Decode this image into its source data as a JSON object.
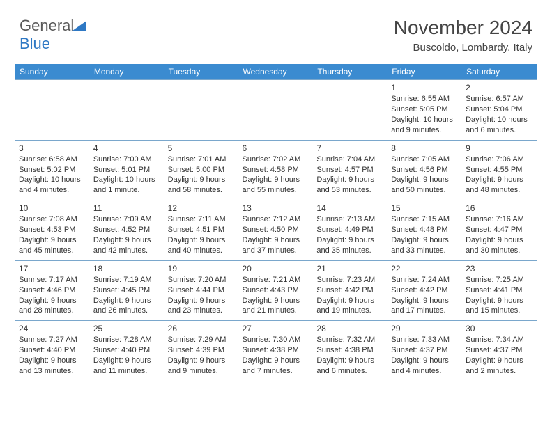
{
  "logo": {
    "text1": "General",
    "text2": "Blue",
    "triangle_color": "#2e78c4"
  },
  "header": {
    "month": "November 2024",
    "location": "Buscoldo, Lombardy, Italy"
  },
  "colors": {
    "header_bg": "#3b8bd0",
    "header_fg": "#ffffff",
    "rule": "#7aa7cc",
    "text": "#333333"
  },
  "daynames": [
    "Sunday",
    "Monday",
    "Tuesday",
    "Wednesday",
    "Thursday",
    "Friday",
    "Saturday"
  ],
  "weeks": [
    [
      null,
      null,
      null,
      null,
      null,
      {
        "d": "1",
        "sr": "Sunrise: 6:55 AM",
        "ss": "Sunset: 5:05 PM",
        "dl": "Daylight: 10 hours and 9 minutes."
      },
      {
        "d": "2",
        "sr": "Sunrise: 6:57 AM",
        "ss": "Sunset: 5:04 PM",
        "dl": "Daylight: 10 hours and 6 minutes."
      }
    ],
    [
      {
        "d": "3",
        "sr": "Sunrise: 6:58 AM",
        "ss": "Sunset: 5:02 PM",
        "dl": "Daylight: 10 hours and 4 minutes."
      },
      {
        "d": "4",
        "sr": "Sunrise: 7:00 AM",
        "ss": "Sunset: 5:01 PM",
        "dl": "Daylight: 10 hours and 1 minute."
      },
      {
        "d": "5",
        "sr": "Sunrise: 7:01 AM",
        "ss": "Sunset: 5:00 PM",
        "dl": "Daylight: 9 hours and 58 minutes."
      },
      {
        "d": "6",
        "sr": "Sunrise: 7:02 AM",
        "ss": "Sunset: 4:58 PM",
        "dl": "Daylight: 9 hours and 55 minutes."
      },
      {
        "d": "7",
        "sr": "Sunrise: 7:04 AM",
        "ss": "Sunset: 4:57 PM",
        "dl": "Daylight: 9 hours and 53 minutes."
      },
      {
        "d": "8",
        "sr": "Sunrise: 7:05 AM",
        "ss": "Sunset: 4:56 PM",
        "dl": "Daylight: 9 hours and 50 minutes."
      },
      {
        "d": "9",
        "sr": "Sunrise: 7:06 AM",
        "ss": "Sunset: 4:55 PM",
        "dl": "Daylight: 9 hours and 48 minutes."
      }
    ],
    [
      {
        "d": "10",
        "sr": "Sunrise: 7:08 AM",
        "ss": "Sunset: 4:53 PM",
        "dl": "Daylight: 9 hours and 45 minutes."
      },
      {
        "d": "11",
        "sr": "Sunrise: 7:09 AM",
        "ss": "Sunset: 4:52 PM",
        "dl": "Daylight: 9 hours and 42 minutes."
      },
      {
        "d": "12",
        "sr": "Sunrise: 7:11 AM",
        "ss": "Sunset: 4:51 PM",
        "dl": "Daylight: 9 hours and 40 minutes."
      },
      {
        "d": "13",
        "sr": "Sunrise: 7:12 AM",
        "ss": "Sunset: 4:50 PM",
        "dl": "Daylight: 9 hours and 37 minutes."
      },
      {
        "d": "14",
        "sr": "Sunrise: 7:13 AM",
        "ss": "Sunset: 4:49 PM",
        "dl": "Daylight: 9 hours and 35 minutes."
      },
      {
        "d": "15",
        "sr": "Sunrise: 7:15 AM",
        "ss": "Sunset: 4:48 PM",
        "dl": "Daylight: 9 hours and 33 minutes."
      },
      {
        "d": "16",
        "sr": "Sunrise: 7:16 AM",
        "ss": "Sunset: 4:47 PM",
        "dl": "Daylight: 9 hours and 30 minutes."
      }
    ],
    [
      {
        "d": "17",
        "sr": "Sunrise: 7:17 AM",
        "ss": "Sunset: 4:46 PM",
        "dl": "Daylight: 9 hours and 28 minutes."
      },
      {
        "d": "18",
        "sr": "Sunrise: 7:19 AM",
        "ss": "Sunset: 4:45 PM",
        "dl": "Daylight: 9 hours and 26 minutes."
      },
      {
        "d": "19",
        "sr": "Sunrise: 7:20 AM",
        "ss": "Sunset: 4:44 PM",
        "dl": "Daylight: 9 hours and 23 minutes."
      },
      {
        "d": "20",
        "sr": "Sunrise: 7:21 AM",
        "ss": "Sunset: 4:43 PM",
        "dl": "Daylight: 9 hours and 21 minutes."
      },
      {
        "d": "21",
        "sr": "Sunrise: 7:23 AM",
        "ss": "Sunset: 4:42 PM",
        "dl": "Daylight: 9 hours and 19 minutes."
      },
      {
        "d": "22",
        "sr": "Sunrise: 7:24 AM",
        "ss": "Sunset: 4:42 PM",
        "dl": "Daylight: 9 hours and 17 minutes."
      },
      {
        "d": "23",
        "sr": "Sunrise: 7:25 AM",
        "ss": "Sunset: 4:41 PM",
        "dl": "Daylight: 9 hours and 15 minutes."
      }
    ],
    [
      {
        "d": "24",
        "sr": "Sunrise: 7:27 AM",
        "ss": "Sunset: 4:40 PM",
        "dl": "Daylight: 9 hours and 13 minutes."
      },
      {
        "d": "25",
        "sr": "Sunrise: 7:28 AM",
        "ss": "Sunset: 4:40 PM",
        "dl": "Daylight: 9 hours and 11 minutes."
      },
      {
        "d": "26",
        "sr": "Sunrise: 7:29 AM",
        "ss": "Sunset: 4:39 PM",
        "dl": "Daylight: 9 hours and 9 minutes."
      },
      {
        "d": "27",
        "sr": "Sunrise: 7:30 AM",
        "ss": "Sunset: 4:38 PM",
        "dl": "Daylight: 9 hours and 7 minutes."
      },
      {
        "d": "28",
        "sr": "Sunrise: 7:32 AM",
        "ss": "Sunset: 4:38 PM",
        "dl": "Daylight: 9 hours and 6 minutes."
      },
      {
        "d": "29",
        "sr": "Sunrise: 7:33 AM",
        "ss": "Sunset: 4:37 PM",
        "dl": "Daylight: 9 hours and 4 minutes."
      },
      {
        "d": "30",
        "sr": "Sunrise: 7:34 AM",
        "ss": "Sunset: 4:37 PM",
        "dl": "Daylight: 9 hours and 2 minutes."
      }
    ]
  ]
}
